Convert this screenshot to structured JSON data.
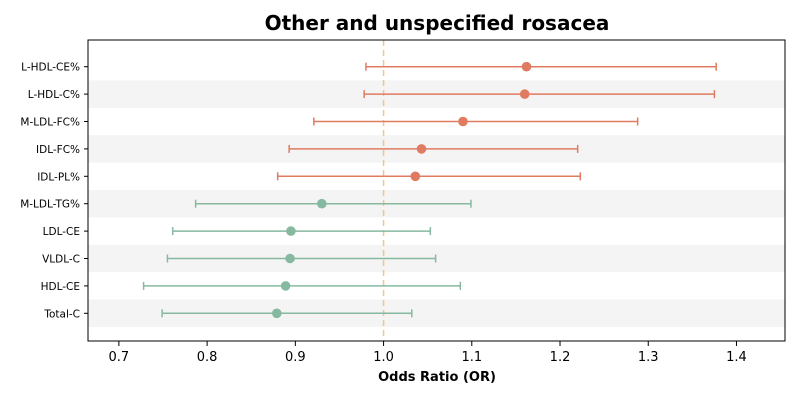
{
  "chart_data": {
    "type": "forest",
    "title": "Other and unspecified rosacea",
    "xlabel": "Odds Ratio (OR)",
    "xlim": [
      0.665,
      1.455
    ],
    "xticks": [
      0.7,
      0.8,
      0.9,
      1.0,
      1.1,
      1.2,
      1.3,
      1.4
    ],
    "xtick_labels": [
      "0.7",
      "0.8",
      "0.9",
      "1.0",
      "1.1",
      "1.2",
      "1.3",
      "1.4"
    ],
    "reference_line": 1.0,
    "colors": {
      "risk": "#e07b61",
      "protective": "#86b9a0",
      "reference": "#f4c48a",
      "band": "#f4f4f4"
    },
    "rows": [
      {
        "label": "L-HDL-CE%",
        "or": 1.162,
        "lower": 0.98,
        "upper": 1.377
      },
      {
        "label": "L-HDL-C%",
        "or": 1.16,
        "lower": 0.978,
        "upper": 1.375
      },
      {
        "label": "M-LDL-FC%",
        "or": 1.09,
        "lower": 0.921,
        "upper": 1.288
      },
      {
        "label": "IDL-FC%",
        "or": 1.043,
        "lower": 0.893,
        "upper": 1.22
      },
      {
        "label": "IDL-PL%",
        "or": 1.036,
        "lower": 0.88,
        "upper": 1.223
      },
      {
        "label": "M-LDL-TG%",
        "or": 0.93,
        "lower": 0.787,
        "upper": 1.099
      },
      {
        "label": "LDL-CE",
        "or": 0.895,
        "lower": 0.761,
        "upper": 1.053
      },
      {
        "label": "VLDL-C",
        "or": 0.894,
        "lower": 0.755,
        "upper": 1.059
      },
      {
        "label": "HDL-CE",
        "or": 0.889,
        "lower": 0.728,
        "upper": 1.087
      },
      {
        "label": "Total-C",
        "or": 0.879,
        "lower": 0.749,
        "upper": 1.032
      }
    ]
  }
}
